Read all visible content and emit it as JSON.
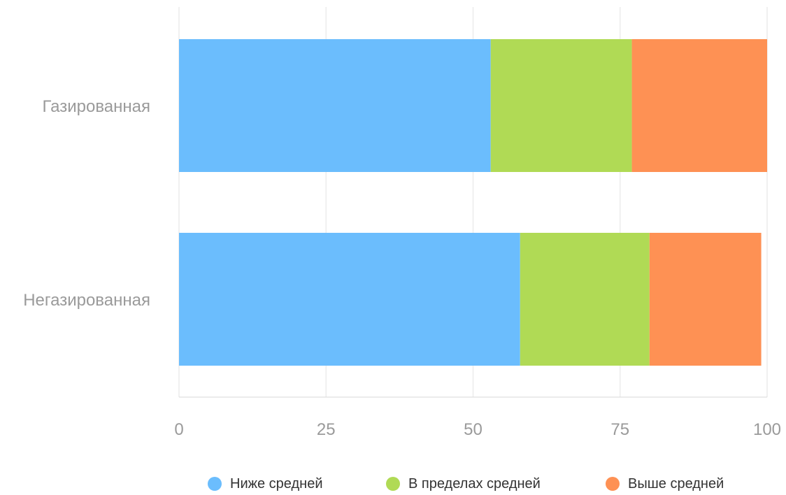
{
  "chart_data": {
    "type": "bar",
    "orientation": "horizontal",
    "stacked": true,
    "categories": [
      "Газированная",
      "Негазированная"
    ],
    "series": [
      {
        "name": "Ниже средней",
        "values": [
          53,
          58
        ],
        "color": "#6bbdfd"
      },
      {
        "name": "В пределах средней",
        "values": [
          24,
          22
        ],
        "color": "#b0da55"
      },
      {
        "name": "Выше средней",
        "values": [
          23,
          19
        ],
        "color": "#fe9154"
      }
    ],
    "xlim": [
      0,
      100
    ],
    "xticks": [
      0,
      25,
      50,
      75,
      100
    ],
    "grid": true,
    "legend": "bottom",
    "title": "",
    "xlabel": "",
    "ylabel": ""
  }
}
